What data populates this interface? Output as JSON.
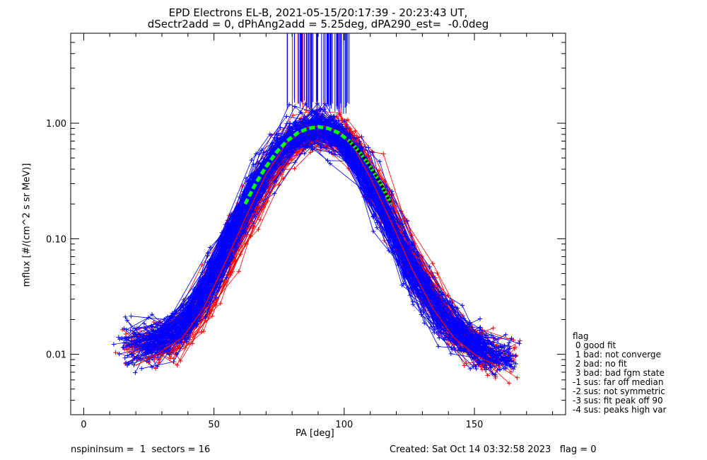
{
  "title_line1": "EPD Electrons EL-B, 2021-05-15/20:17:39 - 20:23:43 UT,",
  "title_line2": "dSectr2add = 0, dPhAng2add = 5.25deg, dPA290_est=  -0.0deg",
  "footer_left": "nspininsum =  1  sectors = 16",
  "footer_right": "Created: Sat Oct 14 03:32:58 2023   flag = 0",
  "legend": {
    "title": "flag",
    "items": [
      " 0 good fit",
      " 1 bad: not converge",
      " 2 bad: no fit",
      " 3 bad: bad fgm state",
      "-1 sus: far off median",
      "-2 sus: not symmetric",
      "-3 sus: fit peak off 90",
      "-4 sus: peaks high var"
    ]
  },
  "chart_data": {
    "type": "line",
    "title": "EPD Electrons EL-B, 2021-05-15/20:17:39 - 20:23:43 UT, dSectr2add = 0, dPhAng2add = 5.25deg, dPA290_est=  -0.0deg",
    "xlabel": "PA [deg]",
    "ylabel": "mflux [#/(cm^2 s sr MeV)]",
    "xlim": [
      -5,
      185
    ],
    "ylim": [
      0.003,
      6.0
    ],
    "yscale": "log",
    "x_ticks": [
      0,
      50,
      100,
      150
    ],
    "y_ticks": [
      0.01,
      0.1,
      1.0
    ],
    "y_tick_labels": [
      "0.01",
      "0.10",
      "1.00"
    ],
    "colors": {
      "up_sector": "#ff0000",
      "down_sector": "#0000ff",
      "fit_fill": "#00ff00",
      "fit_dash": "#000000"
    },
    "series": [
      {
        "color": "#0000ff",
        "x": [
          15,
          20,
          28,
          38,
          46,
          54,
          62,
          70,
          78,
          86,
          92,
          98,
          104,
          110,
          118,
          126,
          134,
          142,
          150,
          158
        ],
        "y": [
          0.012,
          0.012,
          0.013,
          0.016,
          0.03,
          0.07,
          0.17,
          0.38,
          0.7,
          0.9,
          0.93,
          0.82,
          0.58,
          0.33,
          0.14,
          0.06,
          0.03,
          0.017,
          0.012,
          0.01
        ]
      },
      {
        "color": "#ff0000",
        "x": [
          20,
          28,
          38,
          46,
          54,
          62,
          70,
          78,
          86,
          92,
          98,
          104,
          110,
          118,
          126,
          134,
          142,
          150,
          158
        ],
        "y": [
          0.008,
          0.01,
          0.014,
          0.025,
          0.06,
          0.15,
          0.36,
          0.68,
          0.92,
          0.95,
          0.85,
          0.6,
          0.34,
          0.14,
          0.055,
          0.025,
          0.014,
          0.01,
          0.008
        ]
      },
      {
        "name": "fit",
        "color": "#00ff00",
        "x": [
          62,
          66,
          70,
          74,
          78,
          82,
          86,
          90,
          94,
          98,
          102,
          106,
          110,
          114,
          118
        ],
        "y": [
          0.2,
          0.3,
          0.42,
          0.56,
          0.7,
          0.82,
          0.9,
          0.93,
          0.9,
          0.82,
          0.7,
          0.56,
          0.42,
          0.3,
          0.2
        ]
      }
    ],
    "annotations": [
      "vertical saturation lines near PA 78-102 deg above 1.2"
    ]
  }
}
